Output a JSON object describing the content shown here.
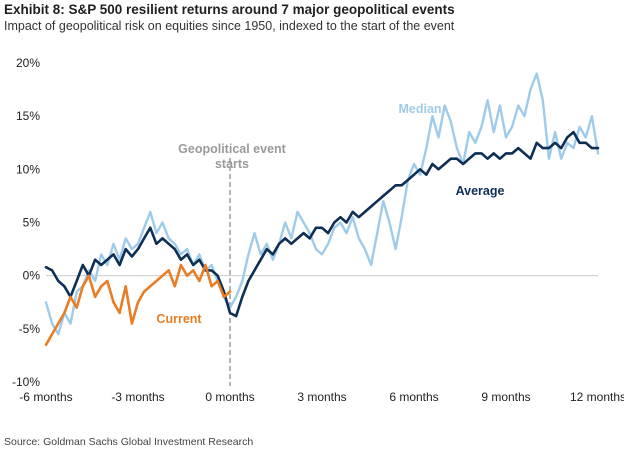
{
  "title": "Exhibit 8: S&P 500 resilient returns around 7 major geopolitical events",
  "subtitle": "Impact of geopolitical risk on equities since 1950, indexed to the start of the event",
  "source": "Source: Goldman Sachs Global Investment Research",
  "colors": {
    "median": "#9fcbea",
    "average": "#0d2f55",
    "current": "#e87d26",
    "event_line": "#888888",
    "event_label": "#9a9a9a"
  },
  "chart_data": {
    "type": "line",
    "xlabel": "",
    "ylabel": "",
    "xlim": [
      -6,
      12
    ],
    "ylim": [
      -10,
      20
    ],
    "x_tick_values": [
      -6,
      -3,
      0,
      3,
      6,
      9,
      12
    ],
    "x_tick_labels": [
      "-6 months",
      "-3 months",
      "0 months",
      "3 months",
      "6 months",
      "9 months",
      "12 months"
    ],
    "y_tick_values": [
      -10,
      -5,
      0,
      5,
      10,
      15,
      20
    ],
    "y_tick_labels": [
      "-10%",
      "-5%",
      "0%",
      "5%",
      "10%",
      "15%",
      "20%"
    ],
    "grid": false,
    "event_marker": {
      "x": 0,
      "label_lines": [
        "Geopolitical event",
        "starts"
      ]
    },
    "series": [
      {
        "name": "Median",
        "key": "median",
        "x": [
          -6.0,
          -5.8,
          -5.6,
          -5.4,
          -5.2,
          -5.0,
          -4.8,
          -4.6,
          -4.4,
          -4.2,
          -4.0,
          -3.8,
          -3.6,
          -3.4,
          -3.2,
          -3.0,
          -2.8,
          -2.6,
          -2.4,
          -2.2,
          -2.0,
          -1.8,
          -1.6,
          -1.4,
          -1.2,
          -1.0,
          -0.8,
          -0.6,
          -0.4,
          -0.2,
          0.0,
          0.2,
          0.4,
          0.6,
          0.8,
          1.0,
          1.2,
          1.4,
          1.6,
          1.8,
          2.0,
          2.2,
          2.4,
          2.6,
          2.8,
          3.0,
          3.2,
          3.4,
          3.6,
          3.8,
          4.0,
          4.2,
          4.4,
          4.6,
          4.8,
          5.0,
          5.2,
          5.4,
          5.6,
          5.8,
          6.0,
          6.2,
          6.4,
          6.6,
          6.8,
          7.0,
          7.2,
          7.4,
          7.6,
          7.8,
          8.0,
          8.2,
          8.4,
          8.6,
          8.8,
          9.0,
          9.2,
          9.4,
          9.6,
          9.8,
          10.0,
          10.2,
          10.4,
          10.6,
          10.8,
          11.0,
          11.2,
          11.4,
          11.6,
          11.8,
          12.0
        ],
        "y": [
          -2.5,
          -4.5,
          -5.5,
          -3.5,
          -4.5,
          -1.5,
          -1.0,
          0.5,
          -0.5,
          2.0,
          1.0,
          3.0,
          1.5,
          3.5,
          2.5,
          3.0,
          4.5,
          6.0,
          4.0,
          5.0,
          3.5,
          3.0,
          2.0,
          2.5,
          1.0,
          2.0,
          0.5,
          1.0,
          -0.5,
          -2.0,
          -3.0,
          -2.0,
          -0.5,
          2.0,
          4.0,
          2.0,
          3.0,
          1.5,
          3.0,
          5.0,
          3.5,
          6.0,
          5.0,
          4.0,
          2.5,
          2.0,
          3.0,
          4.5,
          5.0,
          4.0,
          5.5,
          3.5,
          2.5,
          1.0,
          4.0,
          7.0,
          5.0,
          2.5,
          5.5,
          9.0,
          10.5,
          9.5,
          12.0,
          15.0,
          13.0,
          16.0,
          14.5,
          12.0,
          10.5,
          13.5,
          12.5,
          14.0,
          16.5,
          13.5,
          16.0,
          13.0,
          14.0,
          16.0,
          15.0,
          17.5,
          19.0,
          16.5,
          11.0,
          13.5,
          11.0,
          12.5,
          12.0,
          14.0,
          13.0,
          15.0,
          11.5
        ]
      },
      {
        "name": "Average",
        "key": "average",
        "x": [
          -6.0,
          -5.8,
          -5.6,
          -5.4,
          -5.2,
          -5.0,
          -4.8,
          -4.6,
          -4.4,
          -4.2,
          -4.0,
          -3.8,
          -3.6,
          -3.4,
          -3.2,
          -3.0,
          -2.8,
          -2.6,
          -2.4,
          -2.2,
          -2.0,
          -1.8,
          -1.6,
          -1.4,
          -1.2,
          -1.0,
          -0.8,
          -0.6,
          -0.4,
          -0.2,
          0.0,
          0.2,
          0.4,
          0.6,
          0.8,
          1.0,
          1.2,
          1.4,
          1.6,
          1.8,
          2.0,
          2.2,
          2.4,
          2.6,
          2.8,
          3.0,
          3.2,
          3.4,
          3.6,
          3.8,
          4.0,
          4.2,
          4.4,
          4.6,
          4.8,
          5.0,
          5.2,
          5.4,
          5.6,
          5.8,
          6.0,
          6.2,
          6.4,
          6.6,
          6.8,
          7.0,
          7.2,
          7.4,
          7.6,
          7.8,
          8.0,
          8.2,
          8.4,
          8.6,
          8.8,
          9.0,
          9.2,
          9.4,
          9.6,
          9.8,
          10.0,
          10.2,
          10.4,
          10.6,
          10.8,
          11.0,
          11.2,
          11.4,
          11.6,
          11.8,
          12.0
        ],
        "y": [
          0.8,
          0.5,
          -0.5,
          -1.0,
          -2.0,
          -0.5,
          1.0,
          0.0,
          1.5,
          1.0,
          1.5,
          2.0,
          1.0,
          2.5,
          1.8,
          2.5,
          3.5,
          4.5,
          3.0,
          3.5,
          3.0,
          2.5,
          1.5,
          2.0,
          1.0,
          1.5,
          0.5,
          0.5,
          0.0,
          -1.5,
          -3.5,
          -3.8,
          -2.0,
          -0.5,
          0.5,
          1.5,
          2.5,
          2.0,
          3.0,
          3.5,
          3.0,
          3.5,
          4.0,
          3.5,
          4.5,
          4.5,
          4.0,
          5.0,
          5.5,
          5.0,
          6.0,
          5.5,
          6.0,
          6.5,
          7.0,
          7.5,
          8.0,
          8.5,
          8.5,
          9.0,
          9.5,
          10.0,
          9.5,
          10.5,
          10.0,
          10.5,
          11.0,
          11.0,
          10.5,
          11.0,
          11.5,
          11.5,
          11.0,
          11.5,
          11.0,
          11.5,
          11.5,
          12.0,
          11.5,
          11.0,
          12.5,
          12.0,
          12.0,
          12.5,
          12.0,
          13.0,
          13.5,
          12.5,
          12.5,
          12.0,
          12.0
        ]
      },
      {
        "name": "Current",
        "key": "current",
        "x": [
          -6.0,
          -5.8,
          -5.6,
          -5.4,
          -5.2,
          -5.0,
          -4.8,
          -4.6,
          -4.4,
          -4.2,
          -4.0,
          -3.8,
          -3.6,
          -3.4,
          -3.2,
          -3.0,
          -2.8,
          -2.6,
          -2.4,
          -2.2,
          -2.0,
          -1.8,
          -1.6,
          -1.4,
          -1.2,
          -1.0,
          -0.8,
          -0.6,
          -0.4,
          -0.2,
          0.0
        ],
        "y": [
          -6.5,
          -5.5,
          -4.5,
          -3.5,
          -2.0,
          -3.0,
          -1.0,
          0.0,
          -2.0,
          -1.0,
          -0.5,
          -2.5,
          -3.5,
          -1.0,
          -4.5,
          -2.5,
          -1.5,
          -1.0,
          -0.5,
          0.0,
          0.5,
          -1.0,
          1.0,
          0.0,
          0.5,
          -0.5,
          1.0,
          -1.0,
          -0.5,
          -2.0,
          -1.5
        ]
      }
    ],
    "annotations": [
      {
        "text": "Median",
        "series": "median"
      },
      {
        "text": "Average",
        "series": "average"
      },
      {
        "text": "Current",
        "series": "current"
      }
    ]
  }
}
